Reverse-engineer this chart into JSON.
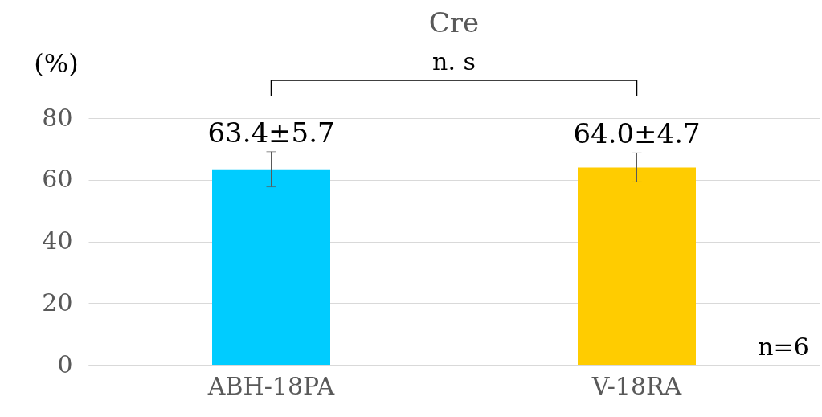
{
  "chart_data": {
    "type": "bar",
    "title": "Cre",
    "ylabel": "(%)",
    "categories": [
      "ABH-18PA",
      "V-18RA"
    ],
    "values": [
      63.4,
      64.0
    ],
    "colors": [
      "#00ccff",
      "#ffcc00"
    ],
    "errors": [
      5.7,
      4.7
    ],
    "value_labels": [
      "63.4±5.7",
      "64.0±4.7"
    ],
    "ylim": [
      0,
      80
    ],
    "yticks": [
      0,
      20,
      40,
      60,
      80
    ],
    "grid": "y",
    "annotations": [
      "n. s",
      "n=6"
    ]
  }
}
